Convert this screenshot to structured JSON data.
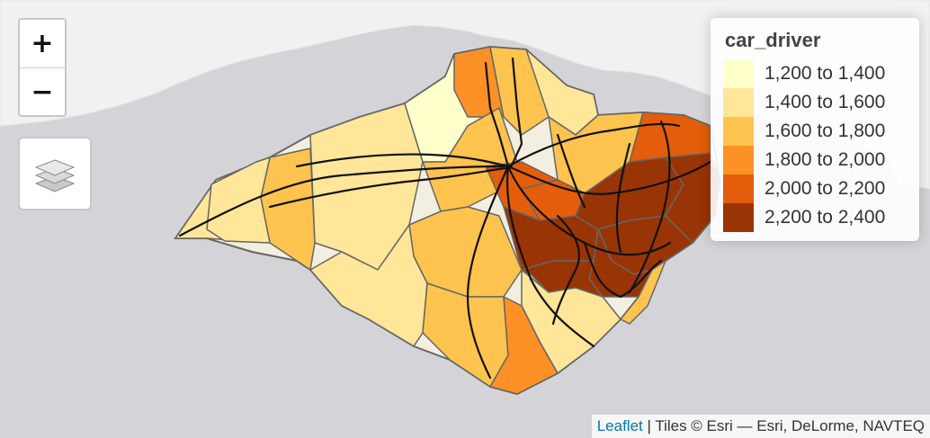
{
  "map": {
    "water_color": "#d4d4d8",
    "land_color": "#f1f1f1",
    "outline_color": "#666666",
    "road_color": "#111111",
    "zones": [
      {
        "band": 2
      },
      {
        "band": 2
      },
      {
        "band": 3
      },
      {
        "band": 1
      },
      {
        "band": 4
      },
      {
        "band": 3
      },
      {
        "band": 2
      },
      {
        "band": 3
      },
      {
        "band": 3
      },
      {
        "band": 3
      },
      {
        "band": 2
      },
      {
        "band": 5
      },
      {
        "band": 6
      },
      {
        "band": 6
      },
      {
        "band": 6
      },
      {
        "band": 6
      },
      {
        "band": 6
      },
      {
        "band": 6
      },
      {
        "band": 5
      },
      {
        "band": 3
      },
      {
        "band": 5
      },
      {
        "band": 2
      },
      {
        "band": 4
      },
      {
        "band": 3
      },
      {
        "band": 2
      }
    ]
  },
  "controls": {
    "zoom_in": "+",
    "zoom_out": "−",
    "layers_icon": "layers-icon"
  },
  "legend": {
    "title": "car_driver",
    "items": [
      {
        "label": "1,200 to 1,400",
        "color": "#ffffcc"
      },
      {
        "label": "1,400 to 1,600",
        "color": "#ffe699"
      },
      {
        "label": "1,600 to 1,800",
        "color": "#fec44f"
      },
      {
        "label": "1,800 to 2,000",
        "color": "#fd9126"
      },
      {
        "label": "2,000 to 2,200",
        "color": "#e35d0a"
      },
      {
        "label": "2,200 to 2,400",
        "color": "#993404"
      }
    ]
  },
  "attribution": {
    "link": "Leaflet",
    "text": "| Tiles © Esri — Esri, DeLorme, NAVTEQ"
  }
}
